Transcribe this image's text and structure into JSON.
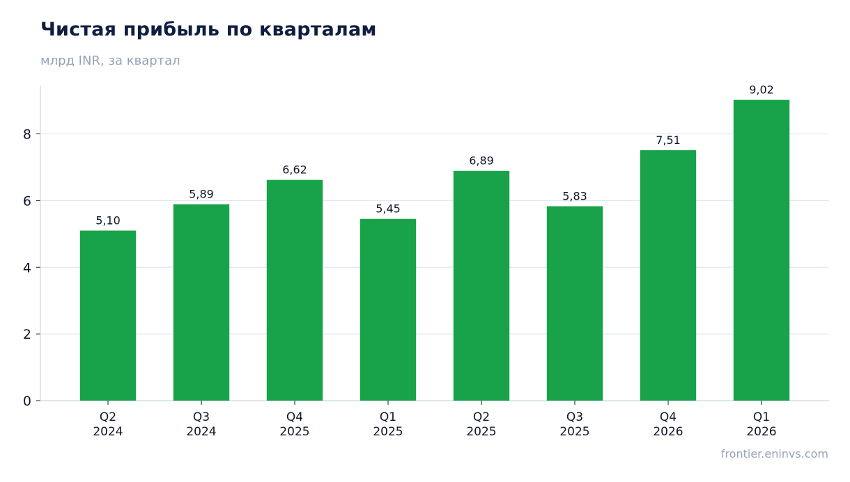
{
  "title": "Чистая прибыль по кварталам",
  "subtitle": "млрд INR, за квартал",
  "source": "frontier.eninvs.com",
  "colors": {
    "bar": "#18a34a",
    "grid": "#e2e8f0",
    "axis": "#cbd5e1",
    "text": "#0f172a",
    "muted": "#94a3b8"
  },
  "chart_data": {
    "type": "bar",
    "categories": [
      [
        "Q2",
        "2024"
      ],
      [
        "Q3",
        "2024"
      ],
      [
        "Q4",
        "2025"
      ],
      [
        "Q1",
        "2025"
      ],
      [
        "Q2",
        "2025"
      ],
      [
        "Q3",
        "2025"
      ],
      [
        "Q4",
        "2026"
      ],
      [
        "Q1",
        "2026"
      ]
    ],
    "values": [
      5.1,
      5.89,
      6.62,
      5.45,
      6.89,
      5.83,
      7.51,
      9.02
    ],
    "value_labels": [
      "5,10",
      "5,89",
      "6,62",
      "5,45",
      "6,89",
      "5,83",
      "7,51",
      "9,02"
    ],
    "title": "Чистая прибыль по кварталам",
    "subtitle": "млрд INR, за квартал",
    "xlabel": "",
    "ylabel": "",
    "ylim": [
      0,
      9.45
    ],
    "yticks": [
      0,
      2,
      4,
      6,
      8
    ],
    "grid": true,
    "legend": "none"
  }
}
